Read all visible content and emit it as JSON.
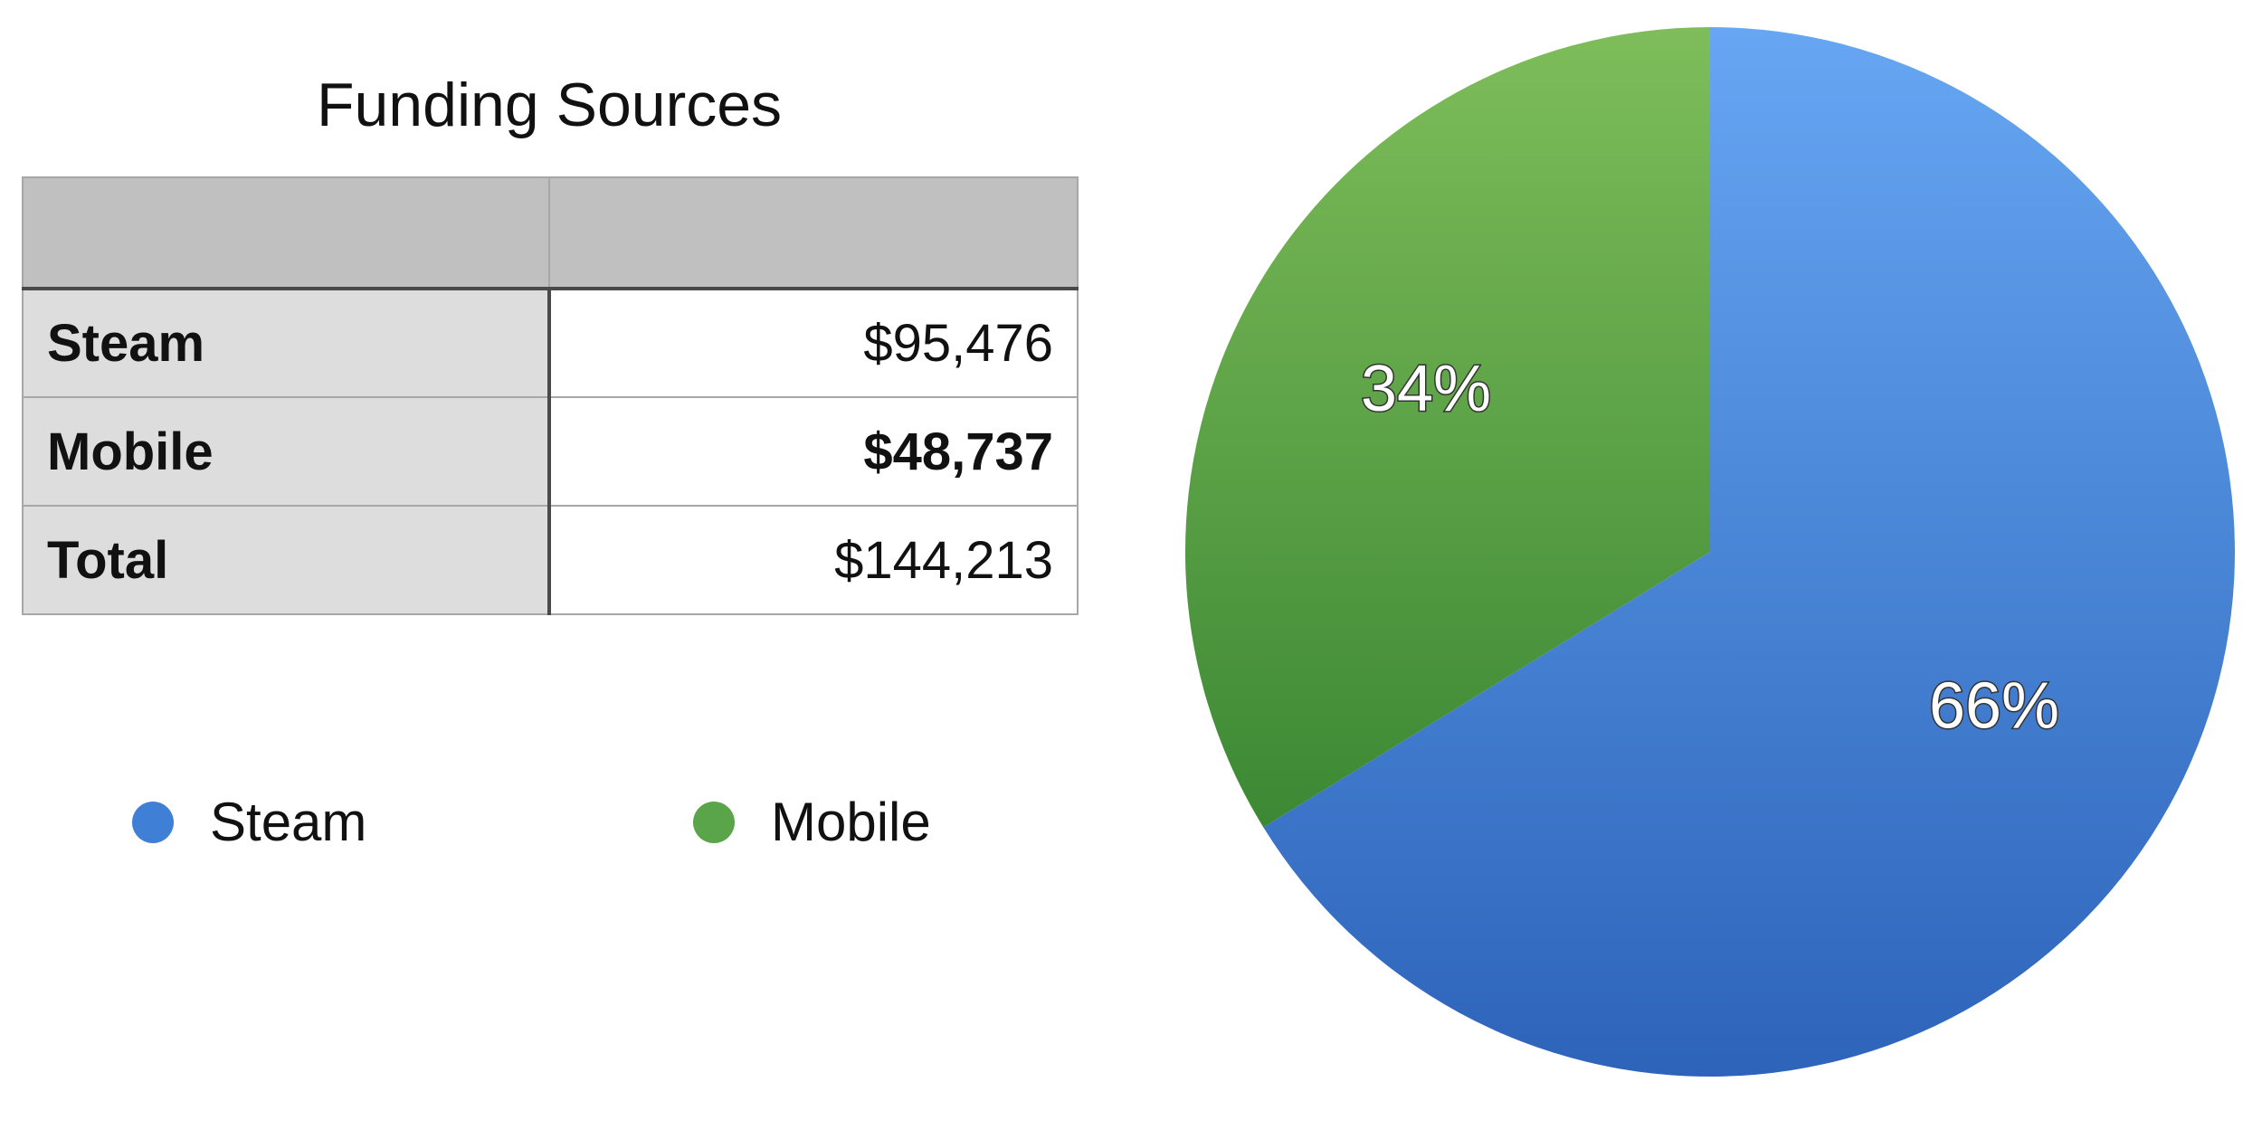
{
  "chart_data": {
    "type": "pie",
    "title": "Funding Sources",
    "categories": [
      "Steam",
      "Mobile"
    ],
    "values": [
      95476,
      48737
    ],
    "percent_labels": [
      "66%",
      "34%"
    ],
    "colors": [
      "#3f7fd6",
      "#5aa44a"
    ],
    "start_angle_deg": 0,
    "direction": "clockwise",
    "legend_position": "left-below-table",
    "table": {
      "header": [
        "",
        ""
      ],
      "rows": [
        {
          "label": "Steam",
          "value": "$95,476",
          "bold_value": false
        },
        {
          "label": "Mobile",
          "value": "$48,737",
          "bold_value": true
        },
        {
          "label": "Total",
          "value": "$144,213",
          "bold_value": false
        }
      ]
    }
  }
}
